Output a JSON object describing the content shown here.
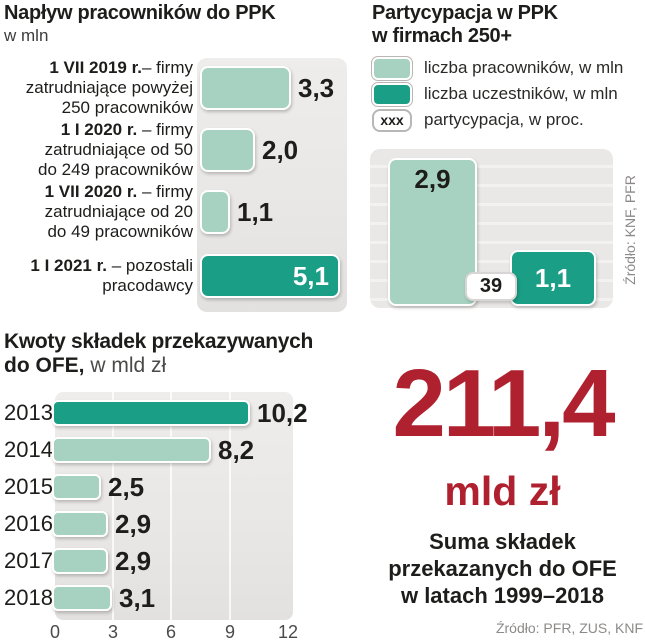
{
  "colors": {
    "light_teal": "#a7d2c1",
    "dark_teal": "#1a9e86",
    "accent_red": "#b0212f",
    "panel_gray": "#eae8e6",
    "text_dark": "#1d1d1b",
    "source_gray": "#8c8a88"
  },
  "chart_data": [
    {
      "id": "inflow",
      "type": "bar",
      "orientation": "horizontal",
      "title": "Napływ pracowników do PPK",
      "subtitle": "w mln",
      "xlim": [
        0,
        5.5
      ],
      "grid": false,
      "bars": [
        {
          "value": 3.3,
          "value_label": "3,3",
          "highlight": false,
          "value_inside": false,
          "label_lines": [
            {
              "bold": "1 VII 2019 r.",
              "rest": "– firmy"
            },
            {
              "bold": "",
              "rest": "zatrudniające powyżej"
            },
            {
              "bold": "",
              "rest": "250 pracowników"
            }
          ]
        },
        {
          "value": 2.0,
          "value_label": "2,0",
          "highlight": false,
          "value_inside": false,
          "label_lines": [
            {
              "bold": "1 I 2020 r.",
              "rest": " – firmy"
            },
            {
              "bold": "",
              "rest": "zatrudniające od 50"
            },
            {
              "bold": "",
              "rest": "do 249 pracowników"
            }
          ]
        },
        {
          "value": 1.1,
          "value_label": "1,1",
          "highlight": false,
          "value_inside": false,
          "label_lines": [
            {
              "bold": "1 VII 2020 r.",
              "rest": " – firmy"
            },
            {
              "bold": "",
              "rest": "zatrudniające od 20"
            },
            {
              "bold": "",
              "rest": "do 49 pracowników"
            }
          ]
        },
        {
          "value": 5.1,
          "value_label": "5,1",
          "highlight": true,
          "value_inside": true,
          "label_lines": [
            {
              "bold": "1 I 2021 r.",
              "rest": " – pozostali"
            },
            {
              "bold": "",
              "rest": "pracodawcy"
            }
          ]
        }
      ]
    },
    {
      "id": "participation",
      "type": "bar",
      "orientation": "vertical",
      "title_line1": "Partycypacja w PPK",
      "title_line2": "w firmach 250+",
      "ylim": [
        0,
        3.1
      ],
      "grid": "horizontal-stripes",
      "legend": [
        {
          "swatch": "light",
          "swatch_text": "",
          "label": "liczba pracowników, w mln"
        },
        {
          "swatch": "dark",
          "swatch_text": "",
          "label": "liczba uczestników, w mln"
        },
        {
          "swatch": "xxx",
          "swatch_text": "xxx",
          "label": "partycypacja, w proc."
        }
      ],
      "bars": [
        {
          "value": 2.9,
          "value_label": "2,9",
          "color": "light"
        },
        {
          "value": 1.1,
          "value_label": "1,1",
          "color": "dark"
        }
      ],
      "participation_value": 39,
      "participation_label": "39",
      "source": "Źródło: KNF, PFR"
    },
    {
      "id": "ofe",
      "type": "bar",
      "orientation": "horizontal",
      "title_bold_line1": "Kwoty składek przekazywanych",
      "title_bold_line2": "do OFE,",
      "title_regular": " w mld zł",
      "categories": [
        "2013",
        "2014",
        "2015",
        "2016",
        "2017",
        "2018"
      ],
      "values": [
        10.2,
        8.2,
        2.5,
        2.9,
        2.9,
        3.1
      ],
      "value_labels": [
        "10,2",
        "8,2",
        "2,5",
        "2,9",
        "2,9",
        "3,1"
      ],
      "highlight_index": 0,
      "xlim": [
        0,
        12.3
      ],
      "x_ticks": [
        0,
        3,
        6,
        9,
        12
      ],
      "x_tick_labels": [
        "0",
        "3",
        "6",
        "9",
        "12"
      ],
      "grid": "vertical"
    }
  ],
  "summary": {
    "big_number": "211,4",
    "unit": "mld zł",
    "caption_lines": [
      "Suma składek",
      "przekazanych do OFE",
      "w latach 1999–2018"
    ],
    "source": "Źródło:  PFR, ZUS, KNF"
  }
}
